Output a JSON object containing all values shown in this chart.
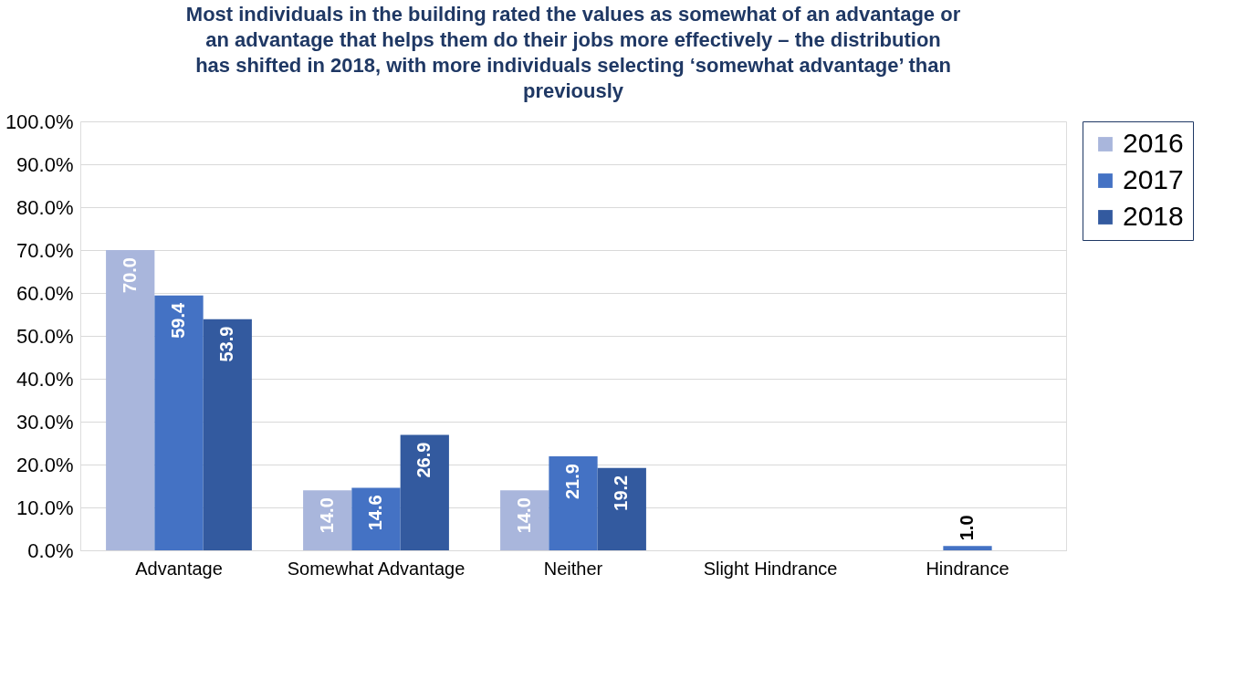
{
  "chart_data": {
    "type": "bar",
    "title": "Most individuals in the building rated the values as somewhat of an advantage or an advantage that helps them do their jobs more effectively – the distribution has shifted in 2018, with more individuals selecting ‘somewhat advantage’ than previously",
    "categories": [
      "Advantage",
      "Somewhat Advantage",
      "Neither",
      "Slight Hindrance",
      "Hindrance"
    ],
    "series": [
      {
        "name": "2016",
        "color": "#a9b6dc",
        "values": [
          70.0,
          14.0,
          14.0,
          null,
          null
        ],
        "value_labels": [
          "70.0",
          "14.0",
          "14.0",
          null,
          null
        ]
      },
      {
        "name": "2017",
        "color": "#4472c4",
        "values": [
          59.4,
          14.6,
          21.9,
          null,
          1.0
        ],
        "value_labels": [
          "59.4",
          "14.6",
          "21.9",
          null,
          "1.0"
        ]
      },
      {
        "name": "2018",
        "color": "#335a9f",
        "values": [
          53.9,
          26.9,
          19.2,
          null,
          null
        ],
        "value_labels": [
          "53.9",
          "26.9",
          "19.2",
          null,
          null
        ]
      }
    ],
    "ylim": [
      0,
      100
    ],
    "yticks": [
      {
        "value": 0,
        "label": "0.0%"
      },
      {
        "value": 10,
        "label": "10.0%"
      },
      {
        "value": 20,
        "label": "20.0%"
      },
      {
        "value": 30,
        "label": "30.0%"
      },
      {
        "value": 40,
        "label": "40.0%"
      },
      {
        "value": 50,
        "label": "50.0%"
      },
      {
        "value": 60,
        "label": "60.0%"
      },
      {
        "value": 70,
        "label": "70.0%"
      },
      {
        "value": 80,
        "label": "80.0%"
      },
      {
        "value": 90,
        "label": "90.0%"
      },
      {
        "value": 100,
        "label": "100.0%"
      }
    ],
    "grid": "y",
    "legend": "right"
  }
}
